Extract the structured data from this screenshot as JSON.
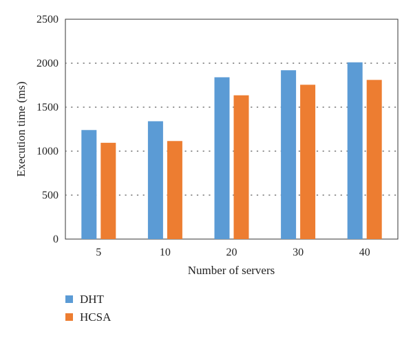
{
  "chart_data": {
    "type": "bar",
    "title": "",
    "xlabel": "Number of servers",
    "ylabel": "Execution time (ms)",
    "categories": [
      "5",
      "10",
      "20",
      "30",
      "40"
    ],
    "series": [
      {
        "name": "DHT",
        "color": "#5b9bd5",
        "values": [
          1240,
          1340,
          1840,
          1920,
          2010
        ]
      },
      {
        "name": "HCSA",
        "color": "#ed7d31",
        "values": [
          1095,
          1115,
          1635,
          1755,
          1810
        ]
      }
    ],
    "ylim": [
      0,
      2500
    ],
    "yticks": [
      0,
      500,
      1000,
      1500,
      2000,
      2500
    ],
    "grid": "horizontal dotted",
    "legend_position": "bottom-left"
  }
}
